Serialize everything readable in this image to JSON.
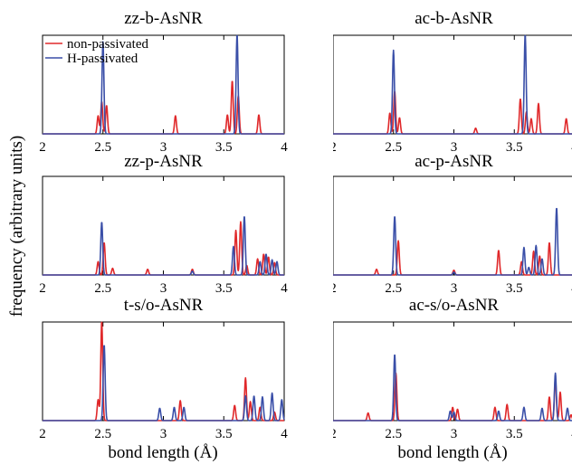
{
  "figure": {
    "ylabel": "frequency (arbitrary units)",
    "xlabel": "bond length (Å)",
    "legend": {
      "placement": "top-left of first panel",
      "entries": [
        {
          "name": "non-passivated",
          "color": "#e0282a"
        },
        {
          "name": "H-passivated",
          "color": "#3a4fa8"
        }
      ]
    }
  },
  "chart_data": [
    {
      "type": "line",
      "title": "zz-b-AsNR",
      "xlim": [
        2,
        4
      ],
      "ylim": [
        0,
        1
      ],
      "xticks": [
        "2",
        "2.5",
        "3",
        "3.5",
        "4"
      ],
      "show_xlabel": false,
      "series": [
        {
          "name": "non-passivated",
          "peaks": [
            [
              2.46,
              0.19,
              0.008
            ],
            [
              2.49,
              0.34,
              0.008
            ],
            [
              2.53,
              0.3,
              0.008
            ],
            [
              3.1,
              0.19,
              0.008
            ],
            [
              3.53,
              0.2,
              0.008
            ],
            [
              3.57,
              0.56,
              0.008
            ],
            [
              3.62,
              0.4,
              0.008
            ],
            [
              3.79,
              0.2,
              0.008
            ]
          ]
        },
        {
          "name": "H-passivated",
          "peaks": [
            [
              2.5,
              0.97,
              0.008
            ],
            [
              3.61,
              1.05,
              0.008
            ]
          ]
        }
      ]
    },
    {
      "type": "line",
      "title": "ac-b-AsNR",
      "xlim": [
        2,
        4
      ],
      "ylim": [
        0,
        1
      ],
      "xticks": [
        "2",
        "2.5",
        "3",
        "3.5",
        "4"
      ],
      "show_xlabel": false,
      "series": [
        {
          "name": "non-passivated",
          "peaks": [
            [
              2.47,
              0.22,
              0.008
            ],
            [
              2.51,
              0.45,
              0.008
            ],
            [
              2.55,
              0.17,
              0.008
            ],
            [
              3.18,
              0.06,
              0.008
            ],
            [
              3.55,
              0.37,
              0.008
            ],
            [
              3.6,
              0.23,
              0.008
            ],
            [
              3.64,
              0.16,
              0.008
            ],
            [
              3.7,
              0.32,
              0.008
            ],
            [
              3.93,
              0.16,
              0.008
            ]
          ]
        },
        {
          "name": "H-passivated",
          "peaks": [
            [
              2.5,
              0.88,
              0.008
            ],
            [
              3.59,
              1.05,
              0.008
            ]
          ]
        }
      ]
    },
    {
      "type": "line",
      "title": "zz-p-AsNR",
      "xlim": [
        2,
        4
      ],
      "ylim": [
        0,
        1
      ],
      "xticks": [
        "2",
        "2.5",
        "3",
        "3.5",
        "4"
      ],
      "show_xlabel": false,
      "series": [
        {
          "name": "non-passivated",
          "peaks": [
            [
              2.46,
              0.14,
              0.008
            ],
            [
              2.51,
              0.34,
              0.008
            ],
            [
              2.58,
              0.07,
              0.008
            ],
            [
              2.87,
              0.06,
              0.008
            ],
            [
              3.24,
              0.06,
              0.008
            ],
            [
              3.6,
              0.47,
              0.008
            ],
            [
              3.64,
              0.56,
              0.008
            ],
            [
              3.69,
              0.1,
              0.008
            ],
            [
              3.78,
              0.17,
              0.008
            ],
            [
              3.83,
              0.22,
              0.008
            ],
            [
              3.87,
              0.19,
              0.008
            ],
            [
              3.92,
              0.13,
              0.008
            ]
          ]
        },
        {
          "name": "H-passivated",
          "peaks": [
            [
              2.49,
              0.56,
              0.008
            ],
            [
              3.24,
              0.04,
              0.008
            ],
            [
              3.58,
              0.3,
              0.008
            ],
            [
              3.67,
              0.62,
              0.008
            ],
            [
              3.8,
              0.14,
              0.008
            ],
            [
              3.85,
              0.22,
              0.008
            ],
            [
              3.9,
              0.16,
              0.008
            ],
            [
              3.94,
              0.14,
              0.008
            ]
          ]
        }
      ]
    },
    {
      "type": "line",
      "title": "ac-p-AsNR",
      "xlim": [
        2,
        4
      ],
      "ylim": [
        0,
        1
      ],
      "xticks": [
        "2",
        "2.5",
        "3",
        "3.5",
        "4"
      ],
      "show_xlabel": false,
      "series": [
        {
          "name": "non-passivated",
          "peaks": [
            [
              2.36,
              0.06,
              0.008
            ],
            [
              2.54,
              0.36,
              0.008
            ],
            [
              3.0,
              0.05,
              0.008
            ],
            [
              3.37,
              0.26,
              0.008
            ],
            [
              3.56,
              0.14,
              0.008
            ],
            [
              3.66,
              0.25,
              0.008
            ],
            [
              3.71,
              0.2,
              0.008
            ],
            [
              3.79,
              0.34,
              0.008
            ]
          ]
        },
        {
          "name": "H-passivated",
          "peaks": [
            [
              2.51,
              0.62,
              0.008
            ],
            [
              3.0,
              0.03,
              0.008
            ],
            [
              3.58,
              0.29,
              0.008
            ],
            [
              3.62,
              0.08,
              0.008
            ],
            [
              3.68,
              0.31,
              0.008
            ],
            [
              3.73,
              0.17,
              0.008
            ],
            [
              3.85,
              0.71,
              0.008
            ]
          ]
        }
      ]
    },
    {
      "type": "line",
      "title": "t-s/o-AsNR",
      "xlim": [
        2,
        4
      ],
      "ylim": [
        0,
        1
      ],
      "xticks": [
        "2",
        "2.5",
        "3",
        "3.5",
        "4"
      ],
      "show_xlabel": true,
      "series": [
        {
          "name": "non-passivated",
          "peaks": [
            [
              2.46,
              0.22,
              0.008
            ],
            [
              2.49,
              1.05,
              0.008
            ],
            [
              3.14,
              0.21,
              0.008
            ],
            [
              3.59,
              0.16,
              0.008
            ],
            [
              3.68,
              0.45,
              0.008
            ],
            [
              3.72,
              0.2,
              0.008
            ],
            [
              3.8,
              0.14,
              0.008
            ],
            [
              3.92,
              0.09,
              0.008
            ]
          ]
        },
        {
          "name": "H-passivated",
          "peaks": [
            [
              2.51,
              0.8,
              0.008
            ],
            [
              2.97,
              0.13,
              0.008
            ],
            [
              3.09,
              0.14,
              0.008
            ],
            [
              3.17,
              0.14,
              0.008
            ],
            [
              3.68,
              0.26,
              0.008
            ],
            [
              3.75,
              0.26,
              0.008
            ],
            [
              3.82,
              0.25,
              0.008
            ],
            [
              3.9,
              0.29,
              0.008
            ],
            [
              3.98,
              0.22,
              0.008
            ]
          ]
        }
      ]
    },
    {
      "type": "line",
      "title": "ac-s/o-AsNR",
      "xlim": [
        2,
        4
      ],
      "ylim": [
        0,
        1
      ],
      "xticks": [
        "2",
        "2.5",
        "3",
        "3.5",
        "4"
      ],
      "show_xlabel": true,
      "series": [
        {
          "name": "non-passivated",
          "peaks": [
            [
              2.29,
              0.08,
              0.008
            ],
            [
              2.52,
              0.5,
              0.008
            ],
            [
              2.99,
              0.14,
              0.008
            ],
            [
              3.03,
              0.12,
              0.008
            ],
            [
              3.34,
              0.14,
              0.008
            ],
            [
              3.44,
              0.17,
              0.008
            ],
            [
              3.79,
              0.25,
              0.008
            ],
            [
              3.84,
              0.44,
              0.008
            ],
            [
              3.88,
              0.3,
              0.008
            ],
            [
              3.97,
              0.06,
              0.008
            ]
          ]
        },
        {
          "name": "H-passivated",
          "peaks": [
            [
              2.51,
              0.7,
              0.008
            ],
            [
              2.97,
              0.1,
              0.008
            ],
            [
              3.0,
              0.09,
              0.008
            ],
            [
              3.37,
              0.1,
              0.008
            ],
            [
              3.58,
              0.14,
              0.008
            ],
            [
              3.73,
              0.13,
              0.008
            ],
            [
              3.84,
              0.5,
              0.008
            ],
            [
              3.94,
              0.13,
              0.008
            ]
          ]
        }
      ]
    }
  ]
}
